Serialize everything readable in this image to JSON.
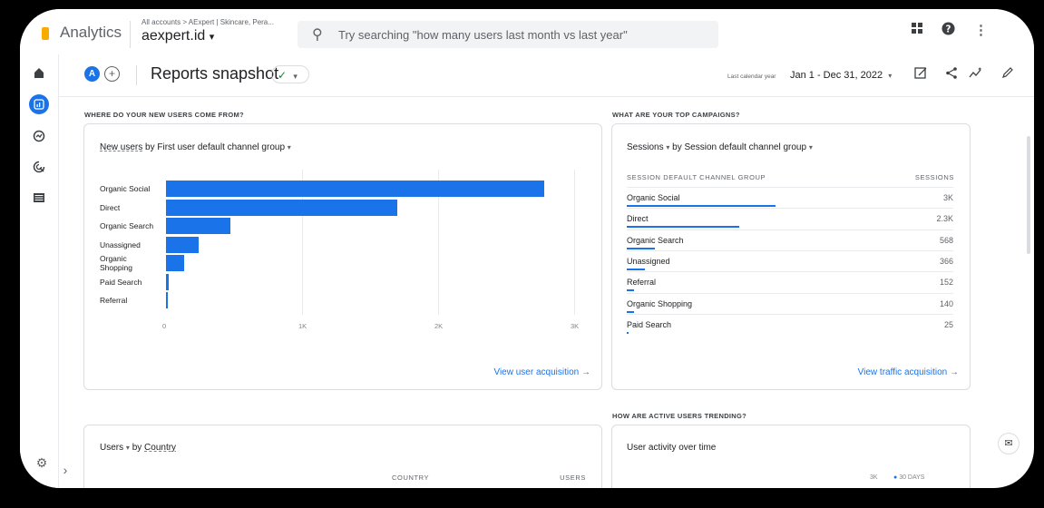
{
  "app": {
    "name": "Analytics",
    "account_crumb": "All accounts > AExpert | Skincare, Pera...",
    "property": "aexpert.id",
    "property_caret": "▾"
  },
  "search": {
    "placeholder": "Try searching \"how many users last month vs last year\""
  },
  "header": {
    "avatar": "A",
    "add": "+",
    "title": "Reports snapshot",
    "date_label": "Last calendar year",
    "date_range": "Jan 1 - Dec 31, 2022"
  },
  "icons": {
    "apps": "apps-icon",
    "help": "help-icon",
    "more": "more-vert-icon",
    "home": "home-icon",
    "reports": "reports-icon",
    "explore": "explore-icon",
    "advertising": "advertising-icon",
    "configure": "configure-icon",
    "expand": "chevron-right-icon",
    "settings": "settings-icon"
  },
  "colors": {
    "accent": "#1a73e8",
    "warning": "#f9ab00",
    "success": "#188038"
  },
  "sections": {
    "new_users": "WHERE DO YOUR NEW USERS COME FROM?",
    "campaigns": "WHAT ARE YOUR TOP CAMPAIGNS?",
    "trending": "HOW ARE ACTIVE USERS TRENDING?"
  },
  "new_users_card": {
    "metric": "New users",
    "by": "by First user default channel group",
    "link": "View user acquisition"
  },
  "chart_data": {
    "type": "bar",
    "orientation": "horizontal",
    "categories": [
      "Organic Social",
      "Direct",
      "Organic Search",
      "Unassigned",
      "Organic Shopping",
      "Paid Search",
      "Referral"
    ],
    "values": [
      2780,
      1700,
      470,
      240,
      130,
      20,
      10
    ],
    "xticks": [
      "0",
      "1K",
      "2K",
      "3K"
    ],
    "xlim": [
      0,
      3000
    ],
    "grid": true
  },
  "campaigns_card": {
    "metric": "Sessions",
    "by": "by Session default channel group",
    "col_group": "SESSION DEFAULT CHANNEL GROUP",
    "col_sessions": "SESSIONS",
    "rows": [
      {
        "name": "Organic Social",
        "value": "3K",
        "share": 0.455
      },
      {
        "name": "Direct",
        "value": "2.3K",
        "share": 0.345
      },
      {
        "name": "Organic Search",
        "value": "568",
        "share": 0.085
      },
      {
        "name": "Unassigned",
        "value": "366",
        "share": 0.055
      },
      {
        "name": "Referral",
        "value": "152",
        "share": 0.023
      },
      {
        "name": "Organic Shopping",
        "value": "140",
        "share": 0.021
      },
      {
        "name": "Paid Search",
        "value": "25",
        "share": 0.004
      }
    ],
    "link": "View traffic acquisition"
  },
  "users_card": {
    "metric": "Users",
    "by": "by",
    "dimension": "Country",
    "col_country": "COUNTRY",
    "col_users": "USERS"
  },
  "activity_card": {
    "title": "User activity over time",
    "legend_value": "3K",
    "legend_series": "30 DAYS"
  }
}
